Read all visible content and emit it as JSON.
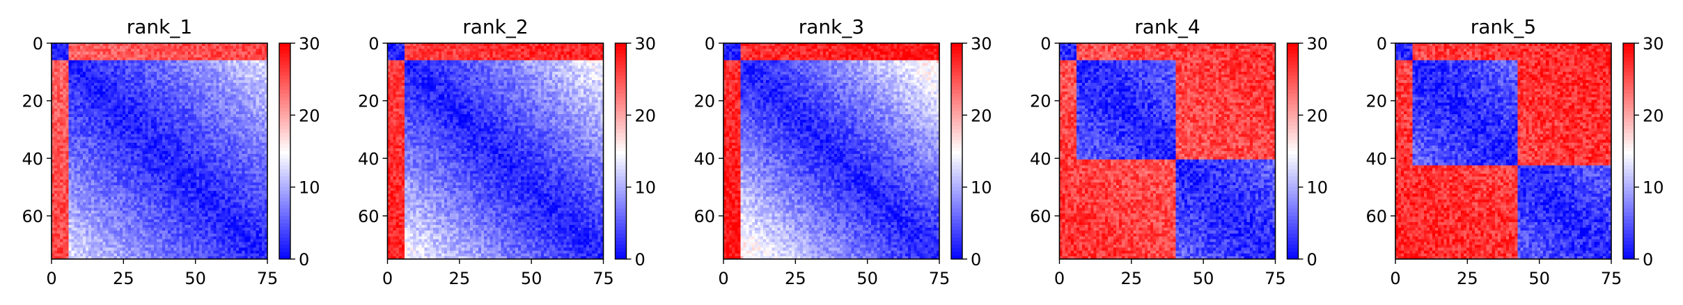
{
  "chart_data": [
    {
      "type": "heatmap",
      "title": "rank_1",
      "n": 76,
      "xticks": [
        0,
        25,
        50,
        75
      ],
      "yticks": [
        0,
        20,
        40,
        60
      ],
      "colorbar": {
        "ticks": [
          0,
          10,
          20,
          30
        ],
        "range": [
          0,
          30
        ],
        "colormap": "bwr"
      },
      "domains": [
        [
          0,
          5
        ],
        [
          6,
          75
        ]
      ],
      "diag_value": 1,
      "intra_slope": 0.12,
      "inter_base": 24,
      "noise": 2.5
    },
    {
      "type": "heatmap",
      "title": "rank_2",
      "n": 76,
      "xticks": [
        0,
        25,
        50,
        75
      ],
      "yticks": [
        0,
        20,
        40,
        60
      ],
      "colorbar": {
        "ticks": [
          0,
          10,
          20,
          30
        ],
        "range": [
          0,
          30
        ],
        "colormap": "bwr"
      },
      "domains": [
        [
          0,
          5
        ],
        [
          6,
          75
        ]
      ],
      "diag_value": 1,
      "intra_slope": 0.14,
      "inter_base": 26,
      "noise": 2.5
    },
    {
      "type": "heatmap",
      "title": "rank_3",
      "n": 76,
      "xticks": [
        0,
        25,
        50,
        75
      ],
      "yticks": [
        0,
        20,
        40,
        60
      ],
      "colorbar": {
        "ticks": [
          0,
          10,
          20,
          30
        ],
        "range": [
          0,
          30
        ],
        "colormap": "bwr"
      },
      "domains": [
        [
          0,
          5
        ],
        [
          6,
          75
        ]
      ],
      "diag_value": 1,
      "intra_slope": 0.16,
      "inter_base": 27,
      "noise": 2.5
    },
    {
      "type": "heatmap",
      "title": "rank_4",
      "n": 76,
      "xticks": [
        0,
        25,
        50,
        75
      ],
      "yticks": [
        0,
        20,
        40,
        60
      ],
      "colorbar": {
        "ticks": [
          0,
          10,
          20,
          30
        ],
        "range": [
          0,
          30
        ],
        "colormap": "bwr"
      },
      "domains": [
        [
          0,
          5
        ],
        [
          6,
          40
        ],
        [
          41,
          75
        ]
      ],
      "diag_value": 1,
      "intra_slope": 0.1,
      "inter_base": 25,
      "noise": 3
    },
    {
      "type": "heatmap",
      "title": "rank_5",
      "n": 76,
      "xticks": [
        0,
        25,
        50,
        75
      ],
      "yticks": [
        0,
        20,
        40,
        60
      ],
      "colorbar": {
        "ticks": [
          0,
          10,
          20,
          30
        ],
        "range": [
          0,
          30
        ],
        "colormap": "bwr"
      },
      "domains": [
        [
          0,
          5
        ],
        [
          6,
          42
        ],
        [
          43,
          75
        ]
      ],
      "diag_value": 1,
      "intra_slope": 0.1,
      "inter_base": 26,
      "noise": 3
    }
  ]
}
